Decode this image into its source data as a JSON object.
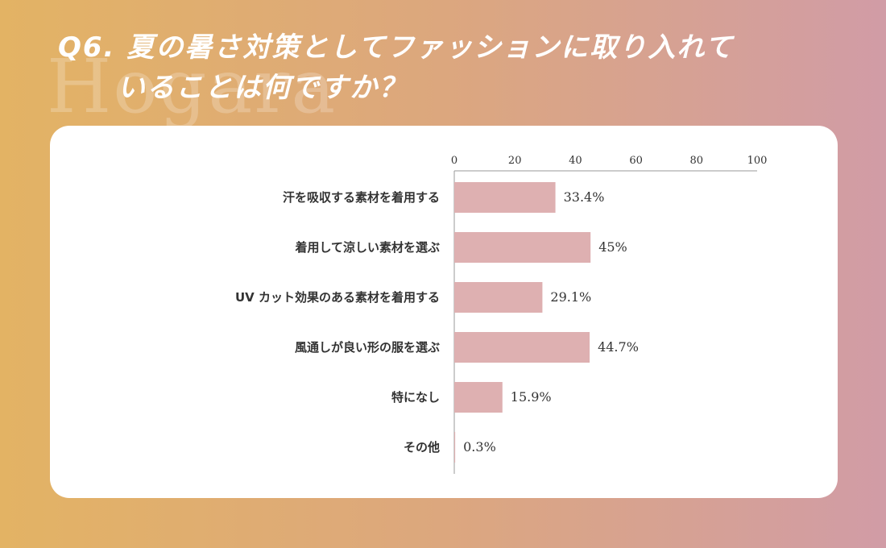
{
  "brand": {
    "watermark": "Hogara"
  },
  "title": {
    "line1": "Q6. 夏の暑さ対策としてファッションに取り入れて",
    "line2": "いることは何ですか？"
  },
  "colors": {
    "bar": "#deb0b1",
    "axis": "#999999"
  },
  "chart_data": {
    "type": "bar",
    "orientation": "horizontal",
    "categories": [
      "汗を吸収する素材を着用する",
      "着用して涼しい素材を選ぶ",
      "UV カット効果のある素材を着用する",
      "風通しが良い形の服を選ぶ",
      "特になし",
      "その他"
    ],
    "values": [
      33.4,
      45,
      29.1,
      44.7,
      15.9,
      0.3
    ],
    "value_labels": [
      "33.4%",
      "45%",
      "29.1%",
      "44.7%",
      "15.9%",
      "0.3%"
    ],
    "xlim": [
      0,
      100
    ],
    "xticks": [
      "0",
      "20",
      "40",
      "60",
      "80",
      "100"
    ],
    "tick_values": [
      0,
      20,
      40,
      60,
      80,
      100
    ],
    "grid": false,
    "legend": "none"
  }
}
